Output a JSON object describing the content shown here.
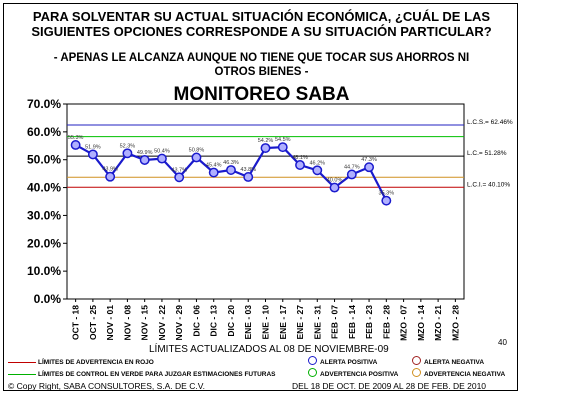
{
  "header": {
    "question_line1": "PARA SOLVENTAR SU ACTUAL SITUACIÓN ECONÓMICA, ¿CUÁL DE LAS",
    "question_line2": "SIGUIENTES OPCIONES CORRESPONDE A SU SITUACIÓN PARTICULAR?",
    "option_line1": "- APENAS LE ALCANZA AUNQUE NO TIENE QUE TOCAR SUS AHORROS NI",
    "option_line2": "OTROS BIENES -"
  },
  "chart_data": {
    "type": "line",
    "title": "MONITOREO SABA",
    "categories": [
      "OCT - 18",
      "OCT - 25",
      "NOV - 01",
      "NOV - 08",
      "NOV - 15",
      "NOV - 22",
      "NOV - 29",
      "DIC - 06",
      "DIC - 13",
      "DIC - 20",
      "ENE - 03",
      "ENE - 10",
      "ENE - 17",
      "ENE - 27",
      "ENE - 31",
      "FEB - 07",
      "FEB - 14",
      "FEB - 23",
      "FEB - 28",
      "MZO - 07",
      "MZO - 14",
      "MZO - 21",
      "MZO - 28"
    ],
    "series": [
      {
        "values": [
          55.3,
          51.9,
          43.9,
          52.3,
          49.9,
          50.4,
          43.7,
          50.8,
          45.4,
          46.3,
          43.8,
          54.2,
          54.5,
          48.1,
          46.2,
          40.0,
          44.7,
          47.3,
          35.3,
          null,
          null,
          null,
          null
        ],
        "labels": [
          "55.3%",
          "51.9%",
          "43.9%",
          "52.3%",
          "49.9%",
          "50.4%",
          "43.7%",
          "50.8%",
          "45.4%",
          "46.3%",
          "43.8%",
          "54.2%",
          "54.5%",
          "48.1%",
          "46.2%",
          "40.0%",
          "44.7%",
          "47.3%",
          "35.3%",
          "",
          "",
          "",
          ""
        ]
      }
    ],
    "y_ticks": [
      "0.0%",
      "10.0%",
      "20.0%",
      "30.0%",
      "40.0%",
      "50.0%",
      "60.0%",
      "70.0%"
    ],
    "ylim": [
      0,
      70
    ],
    "grid": false,
    "reference_lines": [
      {
        "value": 62.46,
        "color": "#2020c0",
        "label": "L.C.S.= 62.46%"
      },
      {
        "value": 58.3,
        "color": "#00c000",
        "label": ""
      },
      {
        "value": 51.28,
        "color": "#000000",
        "label": "L.C.= 51.28%"
      },
      {
        "value": 43.7,
        "color": "#d09020",
        "label": ""
      },
      {
        "value": 40.1,
        "color": "#c00000",
        "label": "L.C.I.= 40.10%"
      }
    ],
    "colors": {
      "series": "#1a1acc",
      "marker_fill": "#b0b0ff"
    }
  },
  "footer": {
    "note_40": "40",
    "limits_caption": "LÍMITES ACTUALIZADOS AL 08 DE NOVIEMBRE-09",
    "legend_red": "LÍMITES DE ADVERTENCIA EN ROJO",
    "legend_green": "LÍMITES DE CONTROL EN VERDE PARA JUZGAR ESTIMACIONES FUTURAS",
    "alerta_positiva": "ALERTA POSITIVA",
    "alerta_negativa": "ALERTA NEGATIVA",
    "advertencia_positiva": "ADVERTENCIA POSITIVA",
    "advertencia_negativa": "ADVERTENCIA NEGATIVA",
    "copyright": "© Copy Right, SABA CONSULTORES, S.A. DE C.V.",
    "date_range": "DEL 18 DE OCT. DE 2009 AL 28 DE FEB. DE 2010",
    "colors": {
      "red": "#c00000",
      "green": "#00b000",
      "blue": "#1a1acc",
      "orange": "#d09020",
      "dark_red": "#a02020"
    }
  }
}
